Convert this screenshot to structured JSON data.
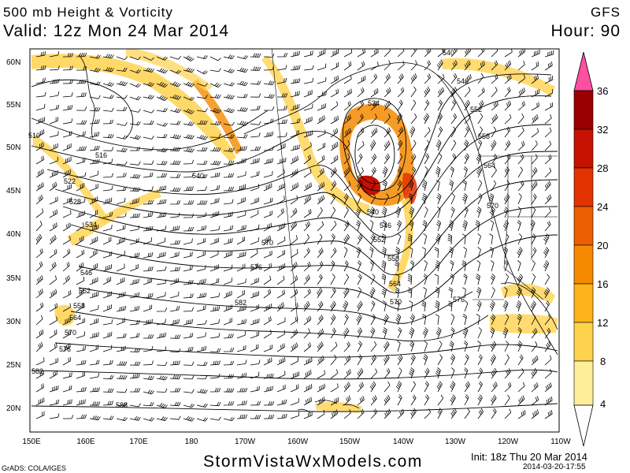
{
  "header": {
    "title": "500 mb Height & Vorticity",
    "valid": "Valid: 12z Mon 24 Mar 2014",
    "model": "GFS",
    "hour": "Hour: 90"
  },
  "footer": {
    "website": "StormVistaWxModels.com",
    "init": "Init: 18z Thu 20 Mar 2014",
    "timestamp": "2014-03-20-17:55",
    "credit": "GrADS: COLA/IGES"
  },
  "map": {
    "lon_labels": [
      "150E",
      "160E",
      "170E",
      "180",
      "170W",
      "160W",
      "150W",
      "140W",
      "130W",
      "120W",
      "110W"
    ],
    "lat_labels": [
      "60N",
      "55N",
      "50N",
      "45N",
      "40N",
      "35N",
      "30N",
      "25N",
      "20N"
    ],
    "contour_labels": [
      "510",
      "516",
      "522",
      "528",
      "534",
      "540",
      "546",
      "552",
      "558",
      "564",
      "570",
      "576",
      "582",
      "588",
      "534",
      "540",
      "546",
      "552",
      "558",
      "564",
      "570",
      "576",
      "582",
      "570",
      "540",
      "546",
      "552",
      "558",
      "564",
      "570",
      "576"
    ],
    "vorticity_colors": [
      "#ffe680",
      "#ffc040",
      "#ffa000",
      "#f07800",
      "#e84800",
      "#d81800",
      "#b00000",
      "#800000"
    ]
  },
  "colorbar": {
    "labels": [
      "36",
      "32",
      "28",
      "24",
      "20",
      "16",
      "12",
      "8",
      "4"
    ],
    "colors": [
      "#ffee99",
      "#ffd24d",
      "#ffb31a",
      "#f58a00",
      "#ec5f00",
      "#e23300",
      "#c41100",
      "#9a0000",
      "#ff4fa0"
    ]
  }
}
